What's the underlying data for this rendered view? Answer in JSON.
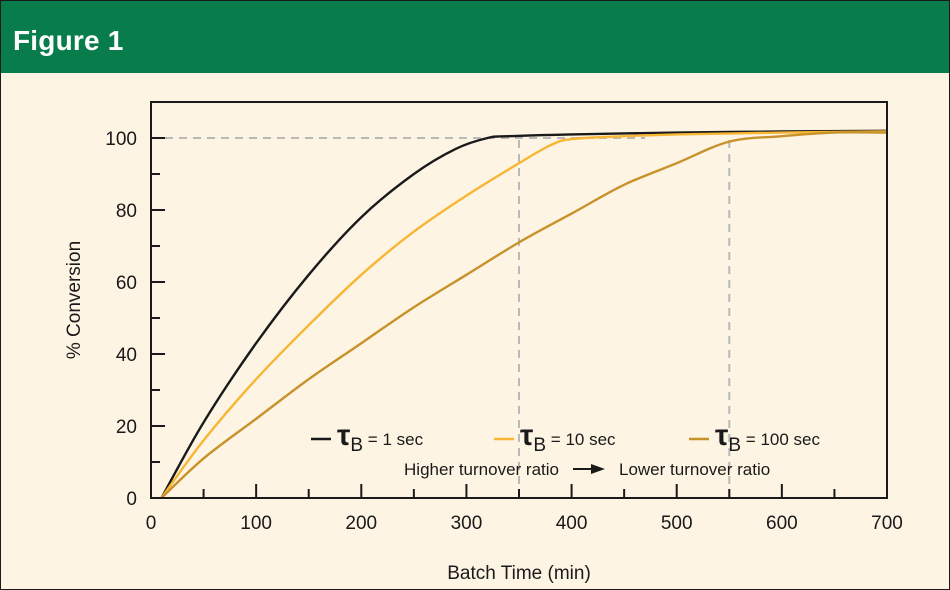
{
  "figure": {
    "title": "Figure 1"
  },
  "colors": {
    "header_bg": "#087d4b",
    "panel_bg": "#fdf4e3",
    "reference_line": "#b9b9b9"
  },
  "chart_data": {
    "type": "line",
    "xlabel": "Batch Time (min)",
    "ylabel": "% Conversion",
    "xlim": [
      0,
      700
    ],
    "ylim": [
      0,
      110
    ],
    "xticks": [
      0,
      100,
      200,
      300,
      400,
      500,
      600,
      700
    ],
    "yticks": [
      0,
      20,
      40,
      60,
      80,
      100
    ],
    "grid": false,
    "legend_position": "bottom-right",
    "series": [
      {
        "name": "τB = 1 sec",
        "symbol": "τ",
        "subscript": "B",
        "suffix": " = 1 sec",
        "color": "#1a1a1a",
        "x": [
          10,
          50,
          100,
          150,
          200,
          250,
          290,
          320,
          340,
          400,
          500,
          600,
          700
        ],
        "y": [
          0,
          21,
          43,
          62,
          78,
          90,
          97,
          100,
          100.5,
          101,
          101.5,
          101.8,
          102
        ]
      },
      {
        "name": "τB = 10 sec",
        "symbol": "τ",
        "subscript": "B",
        "suffix": " = 10 sec",
        "color": "#f7b633",
        "x": [
          10,
          50,
          100,
          150,
          200,
          250,
          300,
          350,
          380,
          400,
          450,
          500,
          600,
          700
        ],
        "y": [
          0,
          16,
          33,
          48,
          62,
          74,
          84,
          93,
          98,
          99.7,
          100.5,
          101,
          101.5,
          101.8
        ]
      },
      {
        "name": "τB = 100 sec",
        "symbol": "τ",
        "subscript": "B",
        "suffix": " = 100 sec",
        "color": "#c8922a",
        "x": [
          10,
          50,
          100,
          150,
          200,
          250,
          300,
          350,
          400,
          450,
          500,
          550,
          600,
          650,
          700
        ],
        "y": [
          0,
          11,
          22,
          33,
          43,
          53,
          62,
          71,
          79,
          87,
          93,
          99,
          100.5,
          101.5,
          101.5
        ]
      }
    ],
    "reference_lines": [
      {
        "axis": "y",
        "value": 100,
        "from": 0,
        "to": 470
      },
      {
        "axis": "x",
        "value": 350,
        "from": 0,
        "to": 100
      },
      {
        "axis": "x",
        "value": 550,
        "from": 0,
        "to": 100
      }
    ],
    "annotation": {
      "left": "Higher turnover ratio",
      "right": "Lower turnover ratio"
    }
  }
}
